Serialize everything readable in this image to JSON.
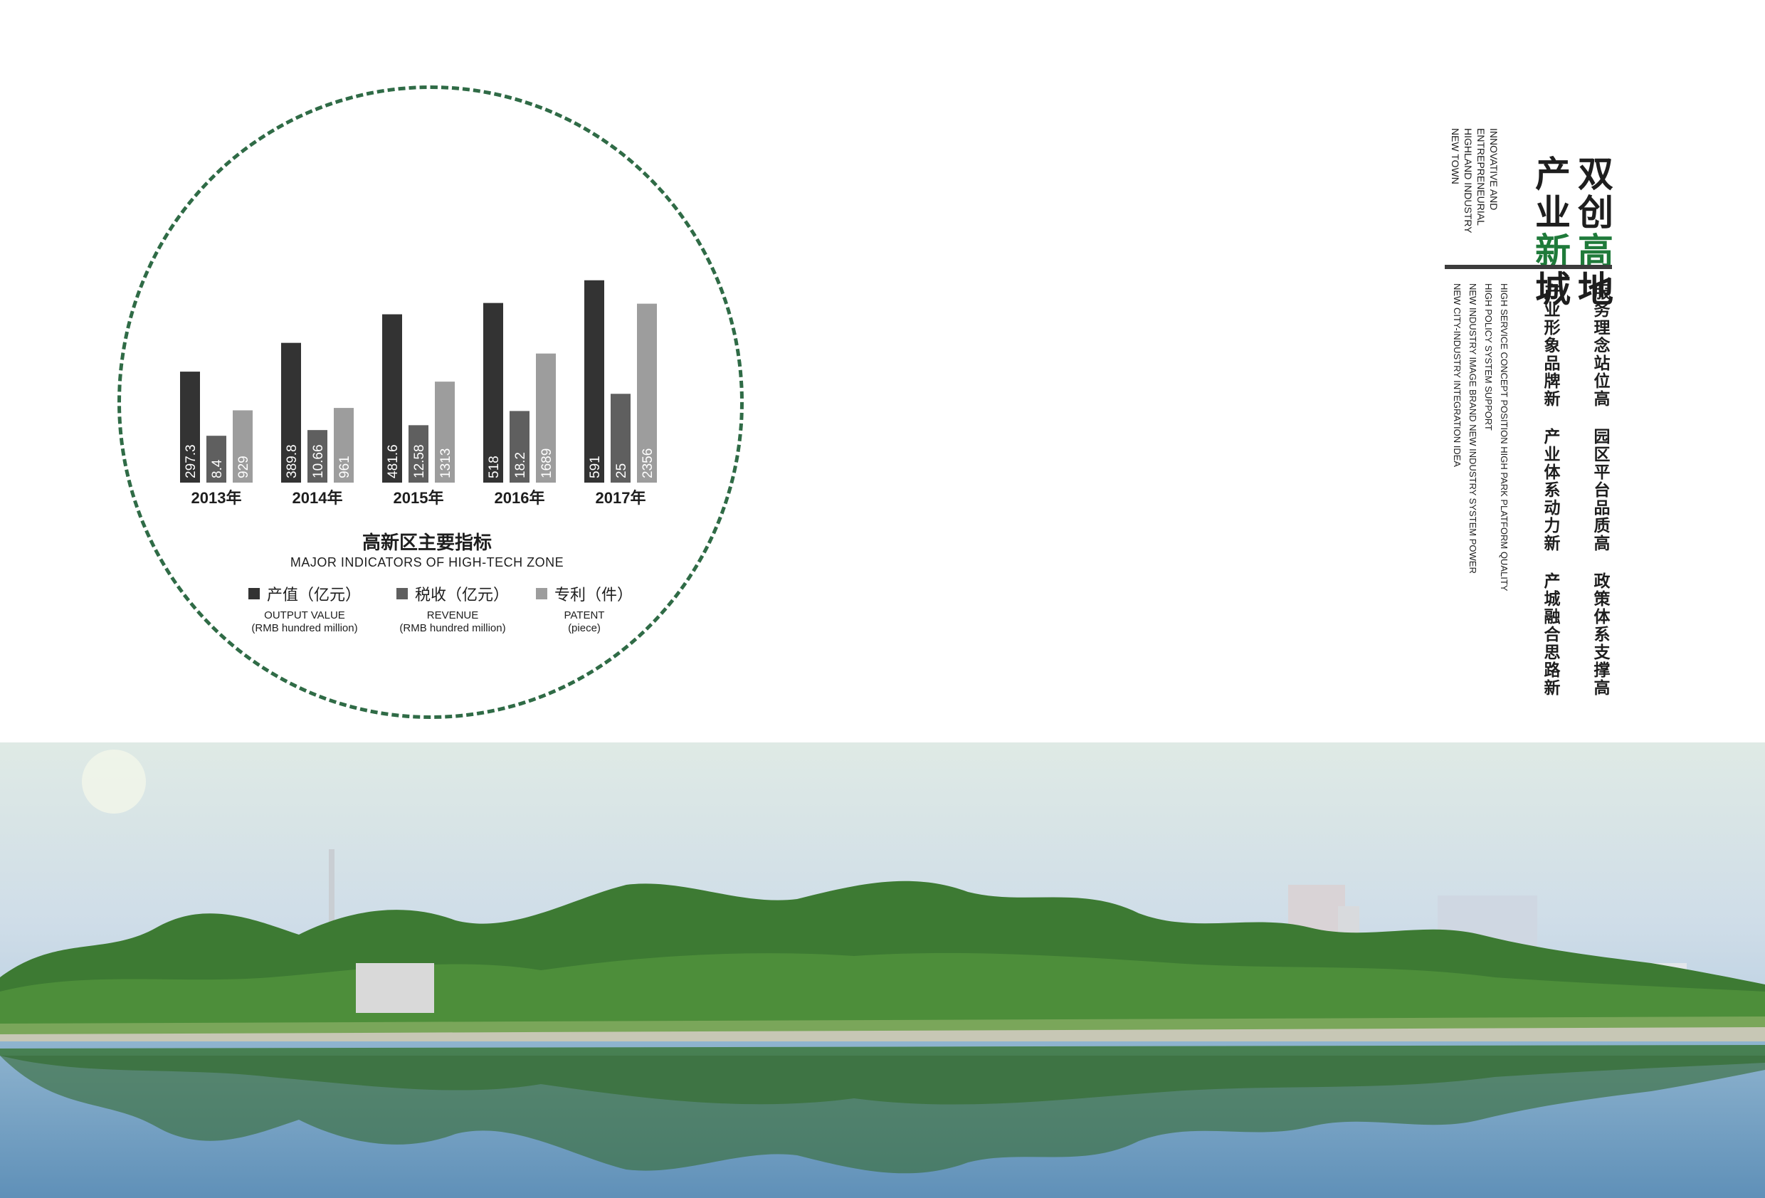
{
  "chart_data": {
    "type": "bar",
    "categories": [
      "2013年",
      "2014年",
      "2015年",
      "2016年",
      "2017年"
    ],
    "series": [
      {
        "name": "产值（亿元）",
        "values": [
          "297.3",
          "389.8",
          "481.6",
          "518",
          "591"
        ],
        "color": "#333333"
      },
      {
        "name": "税收（亿元）",
        "values": [
          "8.4",
          "10.66",
          "12.58",
          "18.2",
          "25"
        ],
        "color": "#5f5f5f"
      },
      {
        "name": "专利（件）",
        "values": [
          "929",
          "961",
          "1313",
          "1689",
          "2356"
        ],
        "color": "#9d9d9d"
      }
    ],
    "title": "高新区主要指标",
    "subtitle": "MAJOR INDICATORS OF  HIGH-TECH ZONE",
    "legend": [
      {
        "label": "产值（亿元）",
        "en": "OUTPUT VALUE\n(RMB hundred million)",
        "color": "#333333"
      },
      {
        "label": "税收（亿元）",
        "en": "REVENUE\n(RMB hundred million)",
        "color": "#5f5f5f"
      },
      {
        "label": "专利（件）",
        "en": "PATENT\n(piece)",
        "color": "#9d9d9d"
      }
    ],
    "legend_position": "bottom",
    "grid": false
  },
  "side": {
    "heading_col1": "双创高地",
    "heading_col2": "产业新城",
    "heading_en": "INNOVATIVE AND\nENTREPRENEURIAL\nHIGHLAND INDUSTRY\nNEW TOWN",
    "slogan_col1": "服务理念站位高  园区平台品质高  政策体系支撑高",
    "slogan_col2": "产业形象品牌新  产业体系动力新  产城融合思路新",
    "slogan_en": "HIGH SERVICE CONCEPT POSITION HIGH PARK PLATFORM QUALITY\nHIGH POLICY SYSTEM SUPPORT\nNEW INDUSTRY IMAGE BRAND NEW INDUSTRY SYSTEM POWER\nNEW CITY-INDUSTRY INTEGRATION IDEA",
    "accent_color": "#1f7a3a"
  }
}
